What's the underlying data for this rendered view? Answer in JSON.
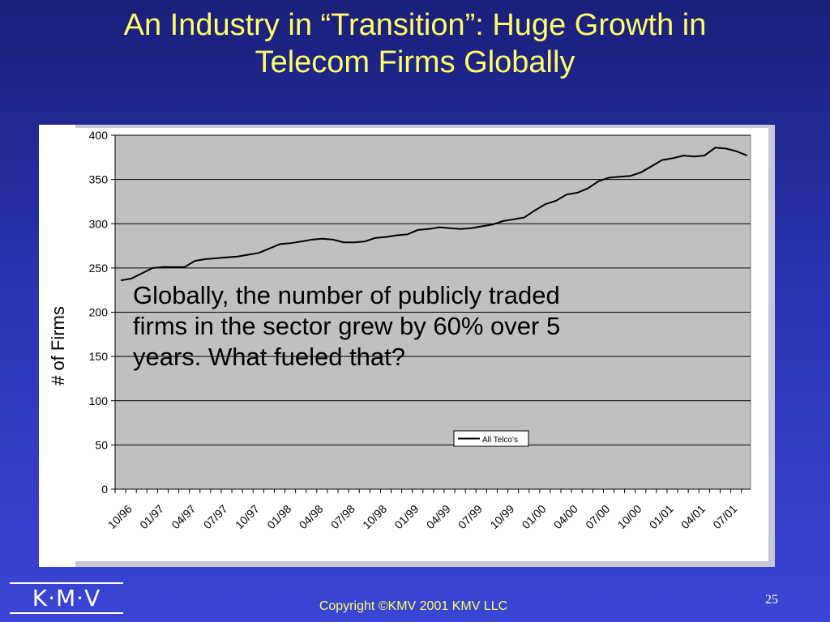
{
  "slide": {
    "title_line1": "An Industry in “Transition”:  Huge Growth in",
    "title_line2": "Telecom Firms Globally",
    "annotation": "Globally, the number of publicly traded\nfirms in the sector grew by 60% over 5\nyears.  What fueled that?",
    "logo": "K·M·V",
    "copyright": "Copyright ©KMV 2001 KMV LLC",
    "page_number": "25"
  },
  "colors": {
    "title": "#ffff66",
    "background": "#2a33b0",
    "plot_background": "#c0c0c0",
    "line": "#000000"
  },
  "chart_data": {
    "type": "line",
    "title": "",
    "xlabel": "",
    "ylabel": "# of Firms",
    "ylim": [
      0,
      400
    ],
    "yticks": [
      0,
      50,
      100,
      150,
      200,
      250,
      300,
      350,
      400
    ],
    "grid": true,
    "legend": "center-bottom",
    "categories": [
      "10/96",
      "01/97",
      "04/97",
      "07/97",
      "10/97",
      "01/98",
      "04/98",
      "07/98",
      "10/98",
      "01/99",
      "04/99",
      "07/99",
      "10/99",
      "01/00",
      "04/00",
      "07/00",
      "10/00",
      "01/01",
      "04/01",
      "07/01"
    ],
    "series": [
      {
        "name": "All Telco's",
        "x": [
          0,
          0.33,
          0.67,
          1.0,
          1.33,
          1.67,
          2.0,
          2.33,
          2.67,
          3.0,
          3.33,
          3.67,
          4.0,
          4.33,
          4.67,
          5.0,
          5.33,
          5.67,
          6.0,
          6.33,
          6.67,
          7.0,
          7.33,
          7.67,
          8.0,
          8.33,
          8.67,
          9.0,
          9.33,
          9.67,
          10.0,
          10.33,
          10.67,
          11.0,
          11.33,
          11.67,
          12.0,
          12.33,
          12.67,
          13.0,
          13.33,
          13.67,
          14.0,
          14.33,
          14.67,
          15.0,
          15.33,
          15.67,
          16.0,
          16.33,
          16.67,
          17.0,
          17.33,
          17.67,
          18.0,
          18.33,
          18.67,
          19.0,
          19.33,
          19.67
        ],
        "values": [
          236,
          238,
          244,
          250,
          251,
          251,
          251,
          258,
          260,
          261,
          262,
          263,
          265,
          267,
          272,
          277,
          278,
          280,
          282,
          283,
          282,
          279,
          279,
          280,
          284,
          285,
          287,
          288,
          293,
          294,
          296,
          295,
          294,
          295,
          297,
          299,
          303,
          305,
          307,
          315,
          322,
          326,
          333,
          335,
          340,
          348,
          352,
          353,
          354,
          358,
          365,
          372,
          374,
          377,
          376,
          377,
          386,
          385,
          382,
          377
        ]
      }
    ]
  }
}
